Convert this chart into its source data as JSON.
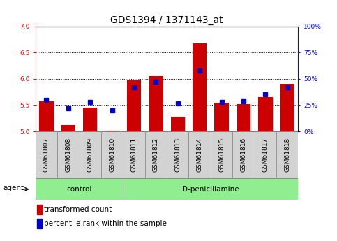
{
  "title": "GDS1394 / 1371143_at",
  "samples": [
    "GSM61807",
    "GSM61808",
    "GSM61809",
    "GSM61810",
    "GSM61811",
    "GSM61812",
    "GSM61813",
    "GSM61814",
    "GSM61815",
    "GSM61816",
    "GSM61817",
    "GSM61818"
  ],
  "red_values": [
    5.58,
    5.12,
    5.46,
    5.02,
    5.97,
    6.05,
    5.28,
    6.68,
    5.55,
    5.52,
    5.65,
    5.9
  ],
  "blue_values": [
    30,
    22,
    28,
    20,
    42,
    47,
    27,
    58,
    28,
    29,
    35,
    42
  ],
  "ylim_left": [
    5.0,
    7.0
  ],
  "ylim_right": [
    0,
    100
  ],
  "yticks_left": [
    5.0,
    5.5,
    6.0,
    6.5,
    7.0
  ],
  "yticks_right": [
    0,
    25,
    50,
    75,
    100
  ],
  "ytick_labels_right": [
    "0%",
    "25%",
    "50%",
    "75%",
    "100%"
  ],
  "bar_color": "#cc0000",
  "marker_color": "#0000cc",
  "control_group_count": 4,
  "treatment_group_count": 8,
  "control_label": "control",
  "treatment_label": "D-penicillamine",
  "agent_label": "agent",
  "legend_red": "transformed count",
  "legend_blue": "percentile rank within the sample",
  "group_bg": "#90ee90",
  "cell_bg": "#d3d3d3",
  "title_fontsize": 10,
  "tick_fontsize": 6.5,
  "label_fontsize": 7.5
}
